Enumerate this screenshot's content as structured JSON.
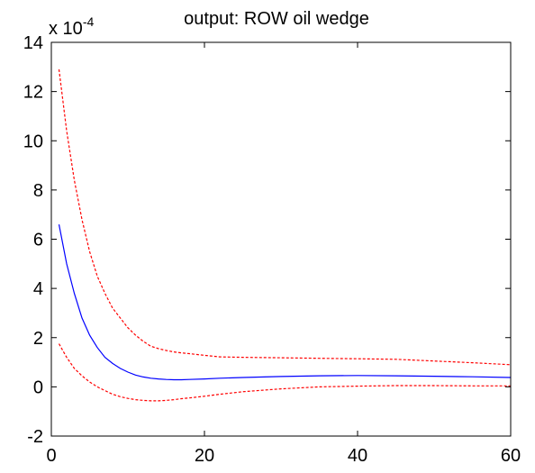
{
  "chart_data": {
    "type": "line",
    "title": "output: ROW oil wedge",
    "scale_label": {
      "base": "x 10",
      "exponent": "-4"
    },
    "xlabel": "",
    "ylabel": "",
    "xlim": [
      0,
      60
    ],
    "ylim": [
      -2,
      14
    ],
    "x_ticks": [
      0,
      20,
      40,
      60
    ],
    "y_ticks": [
      -2,
      0,
      2,
      4,
      6,
      8,
      10,
      12,
      14
    ],
    "grid": false,
    "colors": {
      "median": "#0000ff",
      "bands": "#ff0000"
    },
    "series": [
      {
        "style": "solid",
        "color": "#0000ff",
        "x": [
          1,
          2,
          3,
          4,
          5,
          6,
          7,
          8,
          9,
          10,
          11,
          12,
          13,
          14,
          15,
          16,
          17,
          18,
          20,
          22,
          25,
          30,
          35,
          40,
          45,
          50,
          55,
          60
        ],
        "y": [
          6.6,
          5.0,
          3.8,
          2.8,
          2.1,
          1.6,
          1.2,
          0.95,
          0.75,
          0.6,
          0.48,
          0.4,
          0.35,
          0.32,
          0.3,
          0.29,
          0.29,
          0.3,
          0.32,
          0.35,
          0.38,
          0.42,
          0.45,
          0.46,
          0.45,
          0.43,
          0.41,
          0.38
        ]
      },
      {
        "style": "dashed",
        "color": "#ff0000",
        "x": [
          1,
          2,
          3,
          4,
          5,
          6,
          7,
          8,
          9,
          10,
          11,
          12,
          13,
          14,
          15,
          16,
          17,
          18,
          20,
          22,
          25,
          30,
          35,
          40,
          45,
          50,
          55,
          60
        ],
        "y": [
          12.9,
          10.4,
          8.4,
          6.8,
          5.5,
          4.5,
          3.8,
          3.2,
          2.8,
          2.4,
          2.1,
          1.85,
          1.65,
          1.55,
          1.48,
          1.42,
          1.38,
          1.35,
          1.28,
          1.22,
          1.2,
          1.18,
          1.16,
          1.14,
          1.12,
          1.05,
          0.98,
          0.9
        ]
      },
      {
        "style": "dashed",
        "color": "#ff0000",
        "x": [
          1,
          2,
          3,
          4,
          5,
          6,
          7,
          8,
          9,
          10,
          11,
          12,
          13,
          14,
          15,
          16,
          17,
          18,
          20,
          22,
          25,
          30,
          35,
          40,
          45,
          50,
          55,
          60
        ],
        "y": [
          1.75,
          1.2,
          0.75,
          0.45,
          0.2,
          0.0,
          -0.15,
          -0.3,
          -0.4,
          -0.47,
          -0.52,
          -0.55,
          -0.57,
          -0.57,
          -0.55,
          -0.52,
          -0.48,
          -0.45,
          -0.38,
          -0.3,
          -0.2,
          -0.08,
          0.0,
          0.03,
          0.05,
          0.05,
          0.04,
          0.04
        ]
      }
    ]
  }
}
